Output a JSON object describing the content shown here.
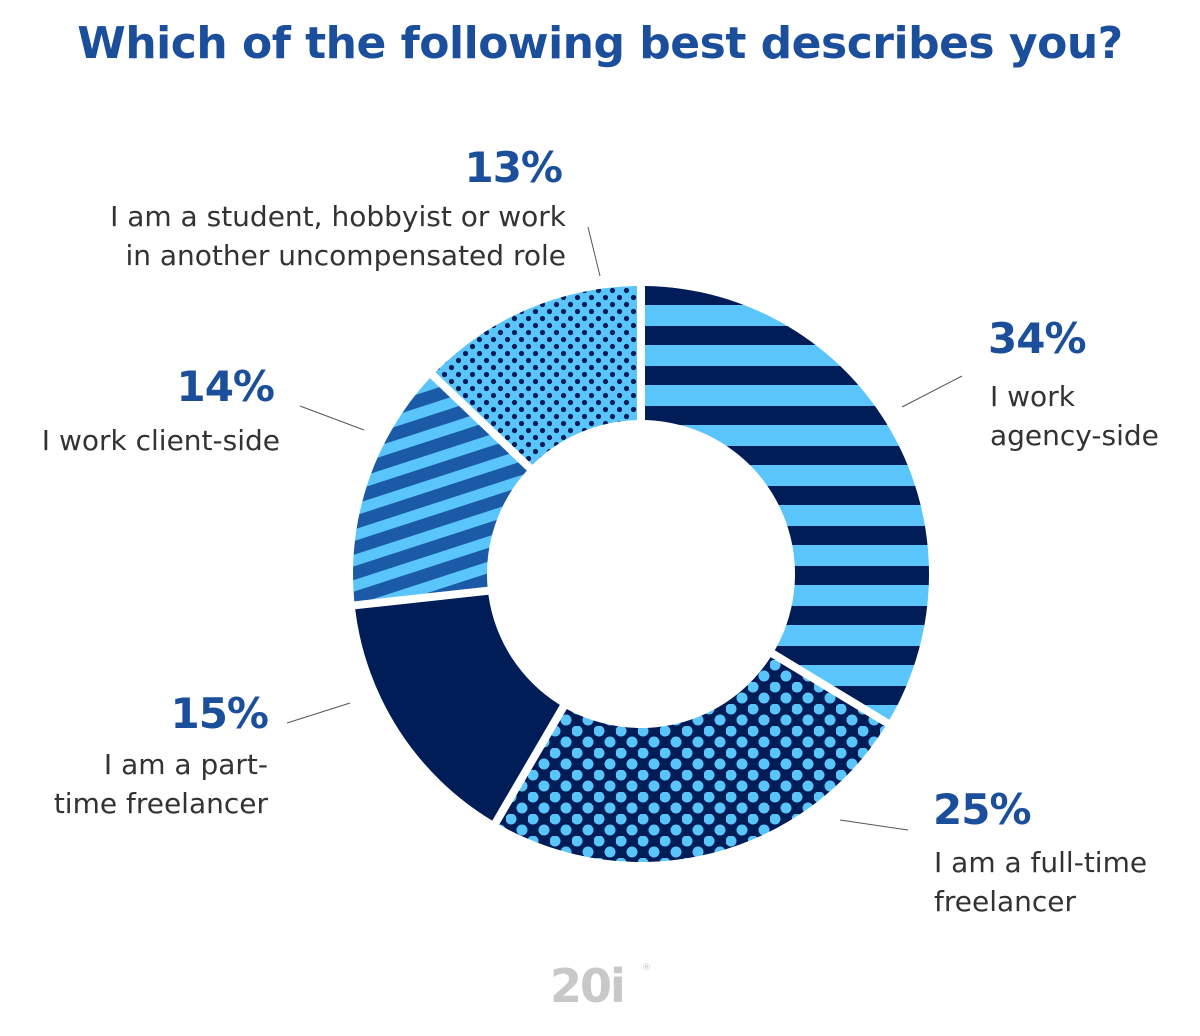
{
  "colors": {
    "title": "#1b4f9c",
    "percent": "#1b4f9c",
    "label": "#333333",
    "navy": "#001d58",
    "sky": "#5ac5fb",
    "mid_blue": "#1b5aa7",
    "logo": "#c8c8c8"
  },
  "logo": {
    "text": "20i",
    "registered": "®"
  },
  "chart_data": {
    "type": "pie",
    "variant": "donut",
    "title": "Which of the following best describes you?",
    "slices": [
      {
        "label": "I work agency-side",
        "value": 34,
        "value_text": "34%",
        "pattern": "horizontal-stripes",
        "colors": [
          "#001d58",
          "#5ac5fb"
        ]
      },
      {
        "label": "I am a full-time freelancer",
        "value": 25,
        "value_text": "25%",
        "pattern": "dots",
        "colors": [
          "#001d58",
          "#5ac5fb"
        ]
      },
      {
        "label": "I am a part-time freelancer",
        "value": 15,
        "value_text": "15%",
        "pattern": "solid",
        "colors": [
          "#001d58"
        ]
      },
      {
        "label": "I work client-side",
        "value": 14,
        "value_text": "14%",
        "pattern": "diagonal-stripes",
        "colors": [
          "#1b5aa7",
          "#5ac5fb"
        ]
      },
      {
        "label": "I am a student, hobbyist or work in another uncompensated role",
        "value": 13,
        "value_text": "13%",
        "pattern": "small-dots",
        "colors": [
          "#5ac5fb",
          "#001d58"
        ]
      }
    ],
    "label_lines": {
      "I work agency-side": "I work\nagency-side",
      "I am a full-time freelancer": "I am a full-time\nfreelancer",
      "I am a part-time freelancer": "I am a part-\ntime freelancer",
      "I work client-side": "I work client-side",
      "I am a student, hobbyist or work in another uncompensated role": "I am a student, hobbyist or work\nin another uncompensated role"
    },
    "legend": "none (labels placed around the chart)"
  }
}
